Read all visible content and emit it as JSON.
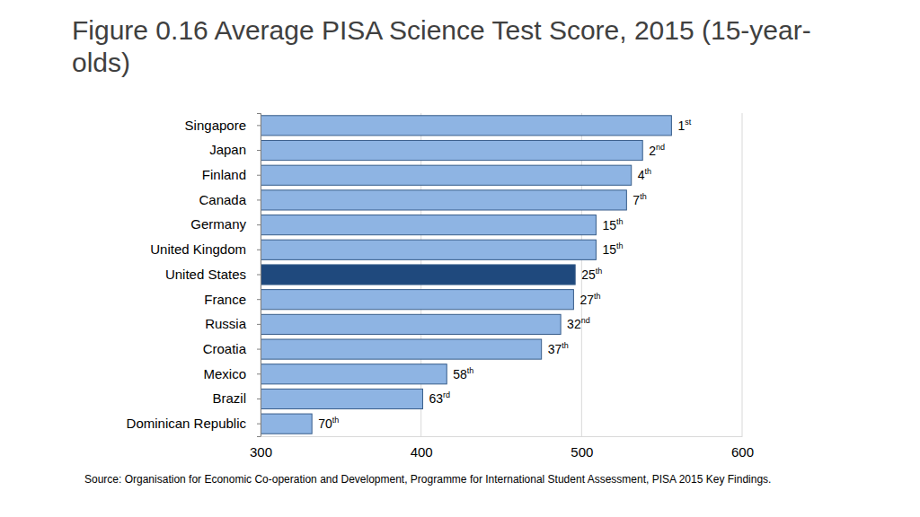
{
  "chart_data": {
    "type": "bar",
    "orientation": "horizontal",
    "title": "Figure 0.16 Average PISA Science Test Score, 2015 (15-year-olds)",
    "categories": [
      "Singapore",
      "Japan",
      "Finland",
      "Canada",
      "Germany",
      "United Kingdom",
      "United States",
      "France",
      "Russia",
      "Croatia",
      "Mexico",
      "Brazil",
      "Dominican Republic"
    ],
    "values": [
      556,
      538,
      531,
      528,
      509,
      509,
      496,
      495,
      487,
      475,
      416,
      401,
      332
    ],
    "colors": [
      "#8eb4e3",
      "#8eb4e3",
      "#8eb4e3",
      "#8eb4e3",
      "#8eb4e3",
      "#8eb4e3",
      "#1f497d",
      "#8eb4e3",
      "#8eb4e3",
      "#8eb4e3",
      "#8eb4e3",
      "#8eb4e3",
      "#8eb4e3"
    ],
    "annotations": [
      "1st",
      "2nd",
      "4th",
      "7th",
      "15th",
      "15th",
      "25th",
      "27th",
      "32nd",
      "37th",
      "58th",
      "63rd",
      "70th"
    ],
    "xlim": [
      300,
      600
    ],
    "xticks": [
      300,
      400,
      500,
      600
    ],
    "grid": true,
    "source": "Source: Organisation for Economic Co-operation and Development, Programme for International Student Assessment, PISA 2015 Key Findings."
  }
}
